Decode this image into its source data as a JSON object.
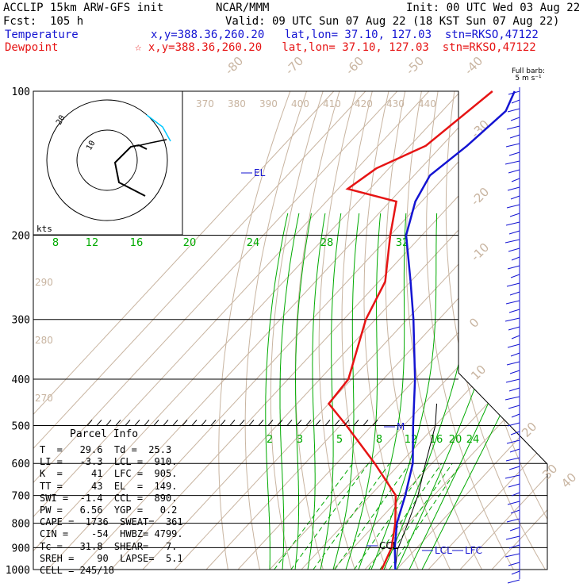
{
  "header": {
    "model": "ACCLIP 15km ARW-GFS init",
    "institution": "NCAR/MMM",
    "init": "Init: 00 UTC Wed 03 Aug 22",
    "fcst": "Fcst:  105 h",
    "valid": "Valid: 09 UTC Sun 07 Aug 22 (18 KST Sun 07 Aug 22)",
    "temperature_label": "Temperature",
    "temperature_info": "x,y=388.36,260.20   lat,lon= 37.10, 127.03  stn=RKSO,47122",
    "dewpoint_label": "Dewpoint",
    "dewpoint_info": "☆ x,y=388.36,260.20   lat,lon= 37.10, 127.03  stn=RKSO,47122"
  },
  "barb_title": "Full barb:\n5 m s⁻¹",
  "hodograph_units": "kts",
  "hodograph_ring": "20",
  "hodograph_ring_inner": "10",
  "parcel_info": {
    "title": "Parcel Info",
    "rows": [
      "T  =   29.6  Td =  25.3",
      "LI =   -3.3  LCL =  910.",
      "K  =     41  LFC =  905.",
      "TT =     43  EL  =  149.",
      "SWI =  -1.4  CCL =  890.",
      "PW =   6.56  YGP =   0.2",
      "CAPE =  1736  SWEAT=  361",
      "CIN =    -54  HWBZ= 4799.",
      "Tc =   31.8  SHEAR=   7.",
      "SREH =    90  LAPSE=  5.1",
      "CELL = 245/18"
    ]
  },
  "chart_data": {
    "type": "skew-t",
    "pressure_levels": [
      100,
      200,
      300,
      400,
      500,
      600,
      700,
      800,
      900,
      1000
    ],
    "pressure_labels": [
      "100",
      "200",
      "300",
      "400",
      "500",
      "600",
      "700",
      "800",
      "900",
      "1000"
    ],
    "temperature_ticks": [
      "-80",
      "-70",
      "-60",
      "-50",
      "-40",
      "-30",
      "-20",
      "-10",
      "0",
      "10",
      "20",
      "30",
      "40"
    ],
    "theta_labels": [
      "370",
      "380",
      "390",
      "400",
      "410",
      "420",
      "430",
      "440"
    ],
    "theta_side_labels": [
      "290",
      "280",
      "270"
    ],
    "mixing_ratio_labels": [
      "8",
      "12",
      "16",
      "20",
      "24",
      "28",
      "32"
    ],
    "mixing_ratio_lower_labels": [
      "2",
      "3",
      "5",
      "8",
      "12",
      "16",
      "20",
      "24"
    ],
    "series": [
      {
        "name": "Temperature",
        "points": [
          [
            100,
            -73
          ],
          [
            110,
            -70
          ],
          [
            130,
            -72
          ],
          [
            150,
            -75
          ],
          [
            170,
            -72
          ],
          [
            200,
            -65
          ],
          [
            250,
            -50
          ],
          [
            300,
            -38
          ],
          [
            400,
            -20
          ],
          [
            500,
            -7
          ],
          [
            600,
            4
          ],
          [
            700,
            11
          ],
          [
            800,
            16.5
          ],
          [
            900,
            23
          ],
          [
            1000,
            29.6
          ]
        ]
      },
      {
        "name": "Dewpoint",
        "points": [
          [
            100,
            -80
          ],
          [
            130,
            -85
          ],
          [
            145,
            -94
          ],
          [
            160,
            -97
          ],
          [
            170,
            -78
          ],
          [
            200,
            -70
          ],
          [
            250,
            -58
          ],
          [
            300,
            -53
          ],
          [
            400,
            -41
          ],
          [
            450,
            -40
          ],
          [
            500,
            -28
          ],
          [
            600,
            -8
          ],
          [
            700,
            8
          ],
          [
            800,
            16
          ],
          [
            900,
            22
          ],
          [
            1000,
            25.3
          ]
        ]
      },
      {
        "name": "Parcel",
        "points": [
          [
            1000,
            29.6
          ],
          [
            910,
            24.5
          ],
          [
            800,
            20
          ],
          [
            700,
            15
          ],
          [
            600,
            8
          ],
          [
            500,
            0
          ],
          [
            450,
            -6
          ]
        ]
      }
    ],
    "annotations": [
      "EL",
      "M",
      "LCL",
      "LFC",
      "CCL"
    ],
    "colors": {
      "temperature": "#1414d2",
      "dewpoint": "#e61414",
      "adiabat": "#c8b4a0",
      "mixing": "#00aa00",
      "isobar": "#000000"
    }
  }
}
